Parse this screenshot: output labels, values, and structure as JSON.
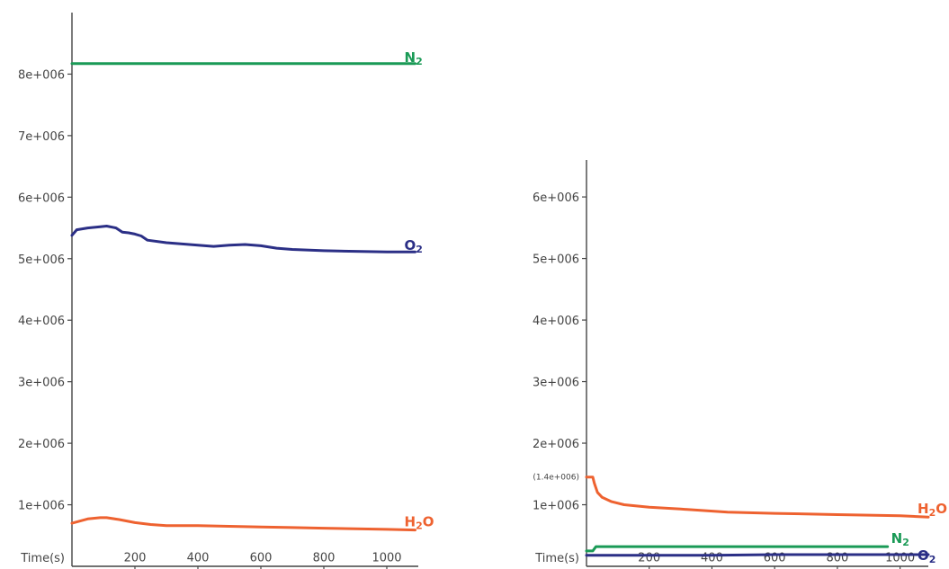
{
  "colors": {
    "N2": "#1a9a56",
    "O2": "#2b2f86",
    "H2O": "#ee6230",
    "axis": "#444444",
    "text": "#444444"
  },
  "chart_data": [
    {
      "type": "line",
      "title": "",
      "xlabel": "Time(s)",
      "ylabel": "",
      "xlim": [
        0,
        1100
      ],
      "ylim": [
        0,
        9000000
      ],
      "xticks": [
        200,
        400,
        600,
        800,
        1000
      ],
      "xtick_labels": [
        "200",
        "400",
        "600",
        "800",
        "1000"
      ],
      "yticks": [
        1000000,
        2000000,
        3000000,
        4000000,
        5000000,
        6000000,
        7000000,
        8000000
      ],
      "ytick_labels": [
        "1e+006",
        "2e+006",
        "3e+006",
        "4e+006",
        "5e+006",
        "6e+006",
        "7e+006",
        "8e+006"
      ],
      "grid": false,
      "series": [
        {
          "name": "N2",
          "label_main": "N",
          "label_sub": "2",
          "x": [
            0,
            200,
            400,
            600,
            800,
            1000,
            1090
          ],
          "y": [
            8170000,
            8170000,
            8170000,
            8170000,
            8170000,
            8170000,
            8170000
          ]
        },
        {
          "name": "O2",
          "label_main": "O",
          "label_sub": "2",
          "x": [
            0,
            15,
            50,
            90,
            110,
            140,
            160,
            180,
            200,
            220,
            240,
            300,
            400,
            450,
            500,
            550,
            600,
            650,
            700,
            800,
            900,
            1000,
            1090
          ],
          "y": [
            5380000,
            5470000,
            5500000,
            5520000,
            5530000,
            5500000,
            5430000,
            5420000,
            5400000,
            5370000,
            5300000,
            5260000,
            5220000,
            5200000,
            5220000,
            5230000,
            5210000,
            5170000,
            5150000,
            5130000,
            5120000,
            5110000,
            5110000
          ]
        },
        {
          "name": "H2O",
          "label_main": "H",
          "label_sub": "2",
          "label_tail": "O",
          "x": [
            0,
            50,
            90,
            110,
            150,
            200,
            250,
            300,
            400,
            500,
            600,
            700,
            800,
            900,
            1000,
            1090
          ],
          "y": [
            700000,
            770000,
            790000,
            790000,
            760000,
            710000,
            680000,
            660000,
            660000,
            650000,
            640000,
            630000,
            620000,
            610000,
            600000,
            590000
          ]
        }
      ]
    },
    {
      "type": "line",
      "title": "",
      "xlabel": "Time(s)",
      "ylabel": "",
      "xlim": [
        0,
        1090
      ],
      "ylim": [
        0,
        6600000
      ],
      "xticks": [
        200,
        400,
        600,
        800,
        1000
      ],
      "xtick_labels": [
        "200",
        "400",
        "600",
        "800",
        "1000"
      ],
      "yticks": [
        1000000,
        2000000,
        3000000,
        4000000,
        5000000,
        6000000
      ],
      "ytick_labels": [
        "1e+006",
        "2e+006",
        "3e+006",
        "4e+006",
        "5e+006",
        "6e+006"
      ],
      "annotation": {
        "y": 1450000,
        "text": "(1.4e+006)"
      },
      "grid": false,
      "series": [
        {
          "name": "H2O",
          "label_main": "H",
          "label_sub": "2",
          "label_tail": "O",
          "x": [
            0,
            20,
            25,
            35,
            50,
            80,
            120,
            200,
            300,
            450,
            600,
            800,
            1000,
            1090
          ],
          "y": [
            1450000,
            1450000,
            1350000,
            1200000,
            1120000,
            1050000,
            1000000,
            960000,
            930000,
            880000,
            860000,
            840000,
            820000,
            800000
          ]
        },
        {
          "name": "N2",
          "label_main": "N",
          "label_sub": "2",
          "x": [
            0,
            20,
            30,
            200,
            400,
            600,
            800,
            960
          ],
          "y": [
            250000,
            250000,
            320000,
            320000,
            320000,
            320000,
            320000,
            320000
          ]
        },
        {
          "name": "O2",
          "label_main": "O",
          "label_sub": "2",
          "x": [
            0,
            200,
            400,
            600,
            800,
            1000,
            1090
          ],
          "y": [
            180000,
            180000,
            180000,
            190000,
            190000,
            190000,
            190000
          ]
        }
      ]
    }
  ]
}
